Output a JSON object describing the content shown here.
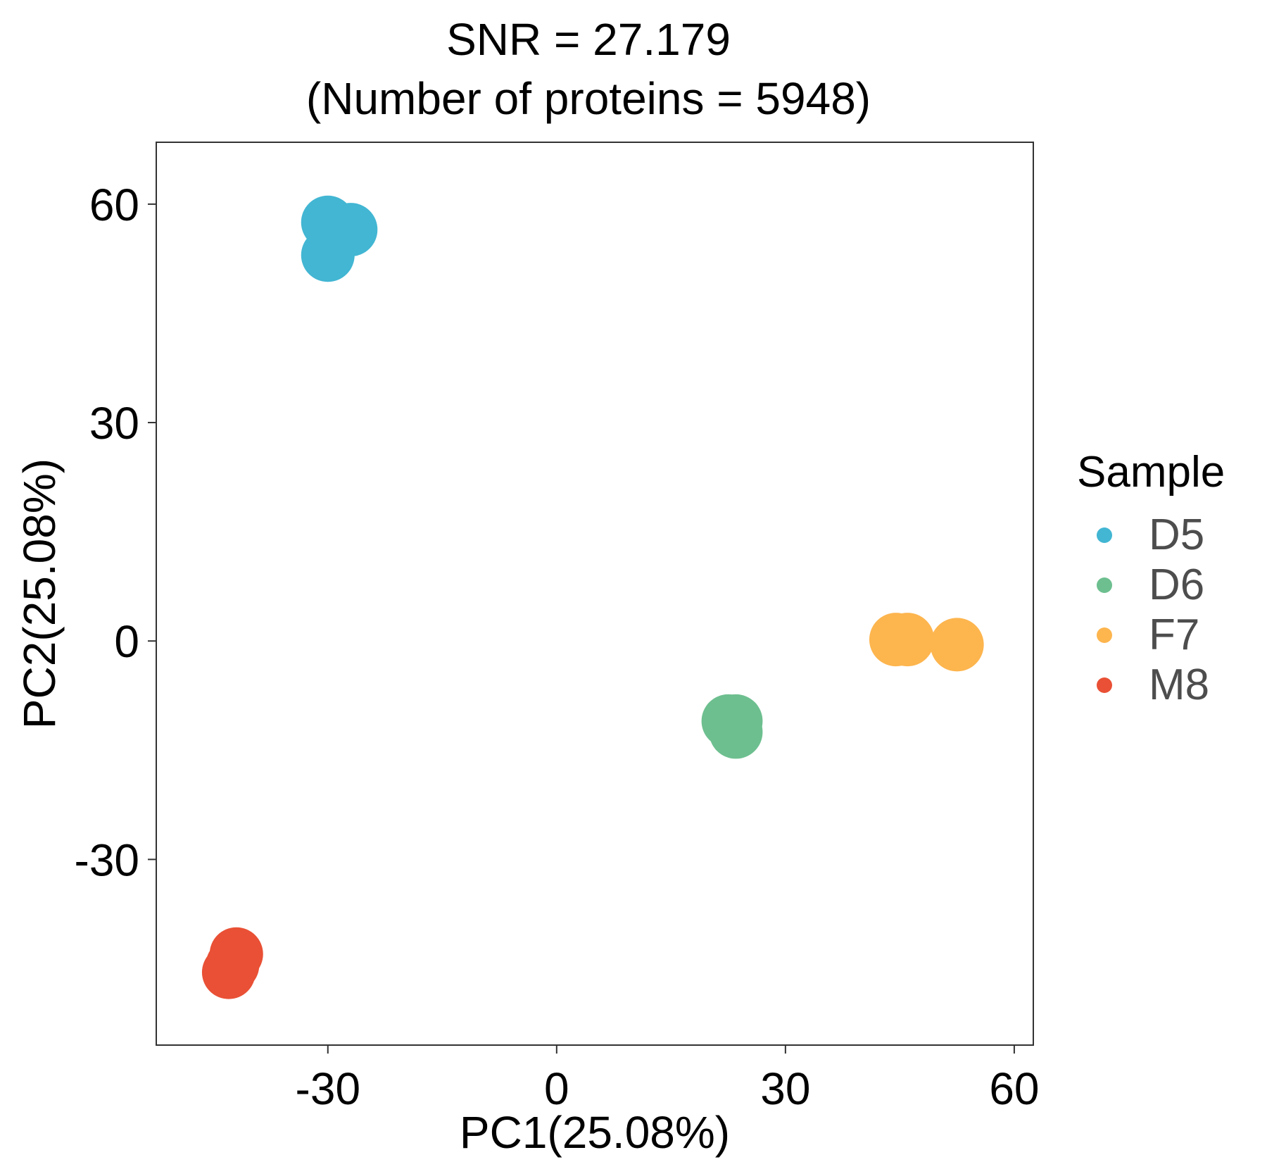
{
  "chart_data": {
    "type": "scatter",
    "title": "SNR = 27.179",
    "subtitle": "(Number of proteins = 5948)",
    "xlabel": "PC1(25.08%)",
    "ylabel": "PC2(25.08%)",
    "xlim": [
      -52.5,
      62.5
    ],
    "ylim": [
      -55.5,
      68.5
    ],
    "xticks": [
      -30,
      0,
      30,
      60
    ],
    "yticks": [
      -30,
      0,
      30,
      60
    ],
    "xtick_labels": [
      "-30",
      "0",
      "30",
      "60"
    ],
    "ytick_labels": [
      "-30",
      "0",
      "30",
      "60"
    ],
    "grid": false,
    "legend_title": "Sample",
    "legend_position": "right",
    "series": [
      {
        "name": "D5",
        "color": "#42B6D3",
        "points": [
          [
            -30.0,
            57.5
          ],
          [
            -27.0,
            56.5
          ],
          [
            -30.0,
            53.0
          ]
        ]
      },
      {
        "name": "D6",
        "color": "#6DBF8F",
        "points": [
          [
            22.5,
            -11.0
          ],
          [
            23.5,
            -11.0
          ],
          [
            23.5,
            -12.5
          ]
        ]
      },
      {
        "name": "F7",
        "color": "#FDB54E",
        "points": [
          [
            44.5,
            0.2
          ],
          [
            46.0,
            0.2
          ],
          [
            52.5,
            -0.5
          ]
        ]
      },
      {
        "name": "M8",
        "color": "#E95035",
        "points": [
          [
            -42.0,
            -43.0
          ],
          [
            -42.5,
            -44.5
          ],
          [
            -43.0,
            -45.5
          ]
        ]
      }
    ]
  }
}
